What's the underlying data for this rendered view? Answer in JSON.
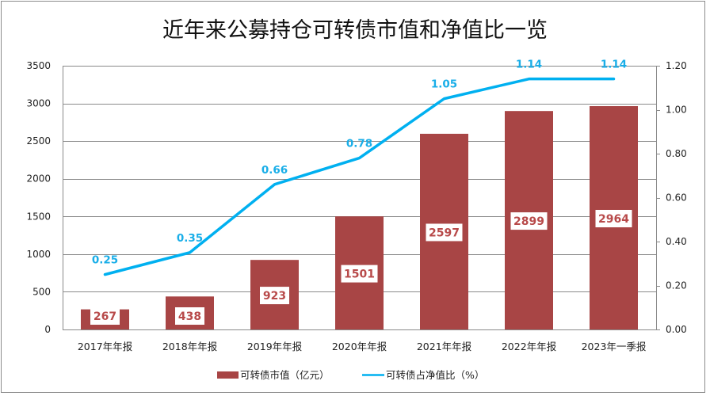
{
  "chart_data": {
    "type": "bar",
    "title": "近年来公募持仓可转债市值和净值比一览",
    "categories": [
      "2017年年报",
      "2018年年报",
      "2019年年报",
      "2020年年报",
      "2021年年报",
      "2022年年报",
      "2023年一季报"
    ],
    "series": [
      {
        "name": "可转债市值（亿元）",
        "type": "bar",
        "axis": "left",
        "color": "#A84545",
        "values": [
          267,
          438,
          923,
          1501,
          2597,
          2899,
          2964
        ],
        "labels": [
          "267",
          "438",
          "923",
          "1501",
          "2597",
          "2899",
          "2964"
        ]
      },
      {
        "name": "可转债占净值比（%）",
        "type": "line",
        "axis": "right",
        "color": "#00B0F0",
        "values": [
          0.25,
          0.35,
          0.66,
          0.78,
          1.05,
          1.14,
          1.14
        ],
        "labels": [
          "0.25",
          "0.35",
          "0.66",
          "0.78",
          "1.05",
          "1.14",
          "1.14"
        ]
      }
    ],
    "y_left": {
      "range": [
        0,
        3500
      ],
      "ticks": [
        "0",
        "500",
        "1000",
        "1500",
        "2000",
        "2500",
        "3000",
        "3500"
      ]
    },
    "y_right": {
      "range": [
        0,
        1.2
      ],
      "ticks": [
        "0.00",
        "0.20",
        "0.40",
        "0.60",
        "0.80",
        "1.00",
        "1.20"
      ]
    },
    "xlabel": "",
    "ylabel": "",
    "grid": true,
    "legend_position": "bottom"
  }
}
